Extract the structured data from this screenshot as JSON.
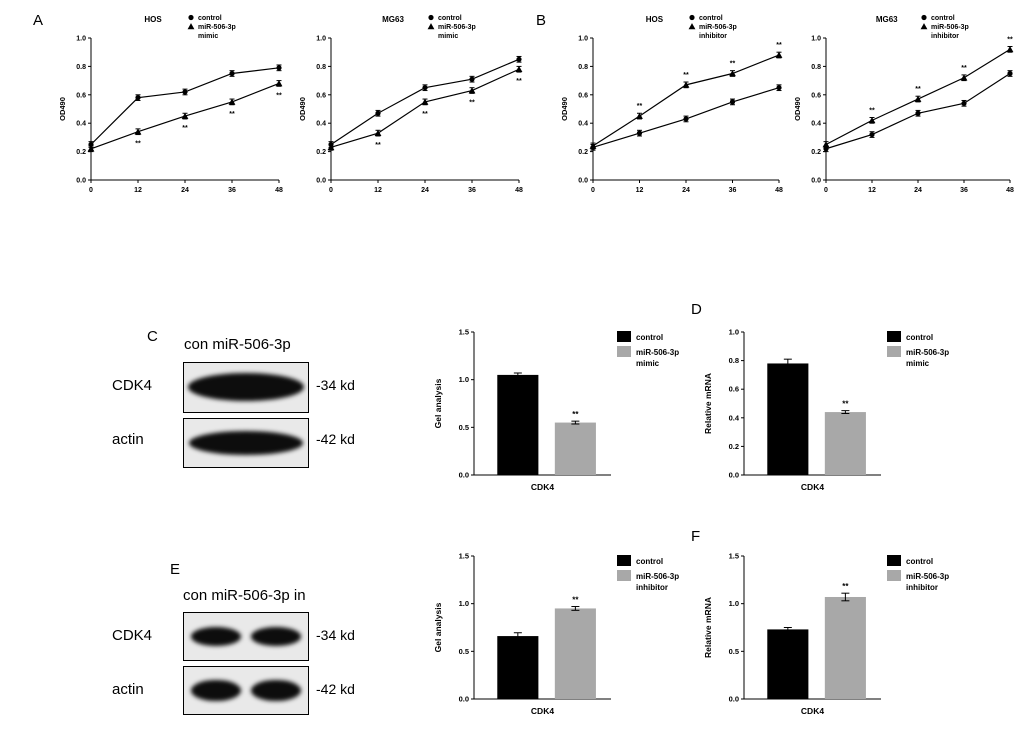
{
  "panels": {
    "A": "A",
    "B": "B",
    "C": "C",
    "D": "D",
    "E": "E",
    "F": "F"
  },
  "blots": {
    "c": {
      "header": "con miR-506-3p",
      "rows": [
        {
          "protein": "CDK4",
          "weight": "-34 kd"
        },
        {
          "protein": "actin",
          "weight": "-42 kd"
        }
      ]
    },
    "e": {
      "header": "con miR-506-3p in",
      "rows": [
        {
          "protein": "CDK4",
          "weight": "-34 kd"
        },
        {
          "protein": "actin",
          "weight": "-42 kd"
        }
      ]
    }
  },
  "chart_data": [
    {
      "id": "a-hos",
      "panel": "A",
      "type": "line",
      "title": "HOS",
      "xlabel": "",
      "ylabel": "OD490",
      "x": [
        0,
        12,
        24,
        36,
        48
      ],
      "xticks": [
        0,
        12,
        24,
        36,
        48
      ],
      "ylim": [
        0,
        1.0
      ],
      "yticks": [
        0.0,
        0.2,
        0.4,
        0.6,
        0.8,
        1.0
      ],
      "grid": false,
      "legend_position": "top-right",
      "sig_side": "below",
      "series": [
        {
          "name": "control",
          "legend_lines": [
            "control"
          ],
          "marker": "circle",
          "values": [
            0.25,
            0.58,
            0.62,
            0.75,
            0.79
          ],
          "errors": [
            0.02,
            0.02,
            0.02,
            0.02,
            0.02
          ]
        },
        {
          "name": "miR-506-3p mimic",
          "legend_lines": [
            "miR-506-3p",
            "mimic"
          ],
          "marker": "triangle",
          "values": [
            0.22,
            0.34,
            0.45,
            0.55,
            0.68
          ],
          "errors": [
            0.02,
            0.02,
            0.02,
            0.02,
            0.02
          ],
          "sig": [
            "",
            "**",
            "**",
            "**",
            "**"
          ]
        }
      ]
    },
    {
      "id": "a-mg63",
      "panel": "A",
      "type": "line",
      "title": "MG63",
      "xlabel": "",
      "ylabel": "OD490",
      "x": [
        0,
        12,
        24,
        36,
        48
      ],
      "xticks": [
        0,
        12,
        24,
        36,
        48
      ],
      "ylim": [
        0,
        1.0
      ],
      "yticks": [
        0.0,
        0.2,
        0.4,
        0.6,
        0.8,
        1.0
      ],
      "grid": false,
      "legend_position": "top-right",
      "sig_side": "below",
      "series": [
        {
          "name": "control",
          "legend_lines": [
            "control"
          ],
          "marker": "circle",
          "values": [
            0.25,
            0.47,
            0.65,
            0.71,
            0.85
          ],
          "errors": [
            0.02,
            0.02,
            0.02,
            0.02,
            0.02
          ]
        },
        {
          "name": "miR-506-3p mimic",
          "legend_lines": [
            "miR-506-3p",
            "mimic"
          ],
          "marker": "triangle",
          "values": [
            0.23,
            0.33,
            0.55,
            0.63,
            0.78
          ],
          "errors": [
            0.02,
            0.02,
            0.02,
            0.02,
            0.02
          ],
          "sig": [
            "",
            "**",
            "**",
            "**",
            "**"
          ]
        }
      ]
    },
    {
      "id": "b-hos",
      "panel": "B",
      "type": "line",
      "title": "HOS",
      "xlabel": "",
      "ylabel": "OD490",
      "x": [
        0,
        12,
        24,
        36,
        48
      ],
      "xticks": [
        0,
        12,
        24,
        36,
        48
      ],
      "ylim": [
        0,
        1.0
      ],
      "yticks": [
        0.0,
        0.2,
        0.4,
        0.6,
        0.8,
        1.0
      ],
      "grid": false,
      "legend_position": "top-right",
      "sig_side": "above",
      "series": [
        {
          "name": "control",
          "legend_lines": [
            "control"
          ],
          "marker": "circle",
          "values": [
            0.23,
            0.33,
            0.43,
            0.55,
            0.65
          ],
          "errors": [
            0.02,
            0.02,
            0.02,
            0.02,
            0.02
          ]
        },
        {
          "name": "miR-506-3p inhibitor",
          "legend_lines": [
            "miR-506-3p",
            "inhibitor"
          ],
          "marker": "triangle",
          "values": [
            0.24,
            0.45,
            0.67,
            0.75,
            0.88
          ],
          "errors": [
            0.02,
            0.02,
            0.02,
            0.02,
            0.02
          ],
          "sig": [
            "",
            "**",
            "**",
            "**",
            "**"
          ]
        }
      ]
    },
    {
      "id": "b-mg63",
      "panel": "B",
      "type": "line",
      "title": "MG63",
      "xlabel": "",
      "ylabel": "OD490",
      "x": [
        0,
        12,
        24,
        36,
        48
      ],
      "xticks": [
        0,
        12,
        24,
        36,
        48
      ],
      "ylim": [
        0,
        1.0
      ],
      "yticks": [
        0.0,
        0.2,
        0.4,
        0.6,
        0.8,
        1.0
      ],
      "grid": false,
      "legend_position": "top-right",
      "sig_side": "above",
      "series": [
        {
          "name": "control",
          "legend_lines": [
            "control"
          ],
          "marker": "circle",
          "values": [
            0.22,
            0.32,
            0.47,
            0.54,
            0.75
          ],
          "errors": [
            0.02,
            0.02,
            0.02,
            0.02,
            0.02
          ]
        },
        {
          "name": "miR-506-3p inhibitor",
          "legend_lines": [
            "miR-506-3p",
            "inhibitor"
          ],
          "marker": "triangle",
          "values": [
            0.25,
            0.42,
            0.57,
            0.72,
            0.92
          ],
          "errors": [
            0.02,
            0.02,
            0.02,
            0.02,
            0.02
          ],
          "sig": [
            "",
            "**",
            "**",
            "**",
            "**"
          ]
        }
      ]
    },
    {
      "id": "c-gel",
      "panel": "C",
      "type": "bar",
      "title": "",
      "xlabel": "",
      "ylabel": "Gel analysis",
      "categories": [
        "CDK4"
      ],
      "ylim": [
        0,
        1.5
      ],
      "yticks": [
        0.0,
        0.5,
        1.0,
        1.5
      ],
      "grid": false,
      "legend_position": "top-right",
      "series": [
        {
          "name": "control",
          "legend_lines": [
            "control"
          ],
          "color": "#000000",
          "values": [
            1.05
          ],
          "errors": [
            0.02
          ]
        },
        {
          "name": "miR-506-3p mimic",
          "legend_lines": [
            "miR-506-3p",
            "mimic"
          ],
          "color": "#a8a8a8",
          "values": [
            0.55
          ],
          "errors": [
            0.015
          ],
          "sig": [
            "**"
          ]
        }
      ]
    },
    {
      "id": "d-mrna",
      "panel": "D",
      "type": "bar",
      "title": "",
      "xlabel": "",
      "ylabel": "Relative mRNA",
      "categories": [
        "CDK4"
      ],
      "ylim": [
        0,
        1.0
      ],
      "yticks": [
        0.0,
        0.2,
        0.4,
        0.6,
        0.8,
        1.0
      ],
      "grid": false,
      "legend_position": "top-right",
      "series": [
        {
          "name": "control",
          "legend_lines": [
            "control"
          ],
          "color": "#000000",
          "values": [
            0.78
          ],
          "errors": [
            0.03
          ]
        },
        {
          "name": "miR-506-3p mimic",
          "legend_lines": [
            "miR-506-3p",
            "mimic"
          ],
          "color": "#a8a8a8",
          "values": [
            0.44
          ],
          "errors": [
            0.01
          ],
          "sig": [
            "**"
          ]
        }
      ]
    },
    {
      "id": "e-gel",
      "panel": "E",
      "type": "bar",
      "title": "",
      "xlabel": "",
      "ylabel": "Gel analysis",
      "categories": [
        "CDK4"
      ],
      "ylim": [
        0,
        1.5
      ],
      "yticks": [
        0.0,
        0.5,
        1.0,
        1.5
      ],
      "grid": false,
      "legend_position": "top-right",
      "series": [
        {
          "name": "control",
          "legend_lines": [
            "control"
          ],
          "color": "#000000",
          "values": [
            0.66
          ],
          "errors": [
            0.035
          ]
        },
        {
          "name": "miR-506-3p inhibitor",
          "legend_lines": [
            "miR-506-3p",
            "inhibitor"
          ],
          "color": "#a8a8a8",
          "values": [
            0.95
          ],
          "errors": [
            0.02
          ],
          "sig": [
            "**"
          ]
        }
      ]
    },
    {
      "id": "f-mrna",
      "panel": "F",
      "type": "bar",
      "title": "",
      "xlabel": "",
      "ylabel": "Relative mRNA",
      "categories": [
        "CDK4"
      ],
      "ylim": [
        0,
        1.5
      ],
      "yticks": [
        0.0,
        0.5,
        1.0,
        1.5
      ],
      "grid": false,
      "legend_position": "top-right",
      "series": [
        {
          "name": "control",
          "legend_lines": [
            "control"
          ],
          "color": "#000000",
          "values": [
            0.73
          ],
          "errors": [
            0.02
          ]
        },
        {
          "name": "miR-506-3p inhibitor",
          "legend_lines": [
            "miR-506-3p",
            "inhibitor"
          ],
          "color": "#a8a8a8",
          "values": [
            1.07
          ],
          "errors": [
            0.04
          ],
          "sig": [
            "**"
          ]
        }
      ]
    }
  ]
}
